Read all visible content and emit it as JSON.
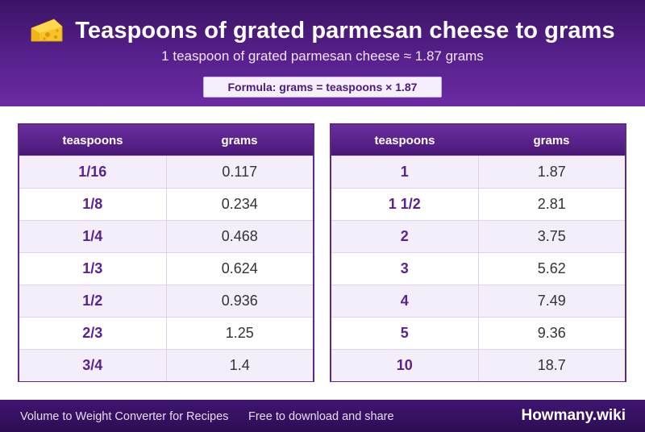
{
  "header": {
    "title": "Teaspoons of grated parmesan cheese to grams",
    "icon": "cheese-icon",
    "subtitle": "1 teaspoon of grated parmesan cheese ≈ 1.87 grams",
    "formula": "Formula: grams = teaspoons × 1.87"
  },
  "tables": [
    {
      "col_teaspoons": "teaspoons",
      "col_grams": "grams",
      "rows": [
        {
          "tsp": "1/16",
          "g": "0.117"
        },
        {
          "tsp": "1/8",
          "g": "0.234"
        },
        {
          "tsp": "1/4",
          "g": "0.468"
        },
        {
          "tsp": "1/3",
          "g": "0.624"
        },
        {
          "tsp": "1/2",
          "g": "0.936"
        },
        {
          "tsp": "2/3",
          "g": "1.25"
        },
        {
          "tsp": "3/4",
          "g": "1.4"
        }
      ]
    },
    {
      "col_teaspoons": "teaspoons",
      "col_grams": "grams",
      "rows": [
        {
          "tsp": "1",
          "g": "1.87"
        },
        {
          "tsp": "1 1/2",
          "g": "2.81"
        },
        {
          "tsp": "2",
          "g": "3.75"
        },
        {
          "tsp": "3",
          "g": "5.62"
        },
        {
          "tsp": "4",
          "g": "7.49"
        },
        {
          "tsp": "5",
          "g": "9.36"
        },
        {
          "tsp": "10",
          "g": "18.7"
        }
      ]
    }
  ],
  "footer": {
    "left_text": "Volume to Weight Converter for Recipes",
    "middle_text": "Free to download and share",
    "brand": "Howmany.wiki"
  },
  "colors": {
    "header_purple": "#5a2290",
    "accent_text": "#5a2290",
    "row_alt": "#f3eefa"
  }
}
